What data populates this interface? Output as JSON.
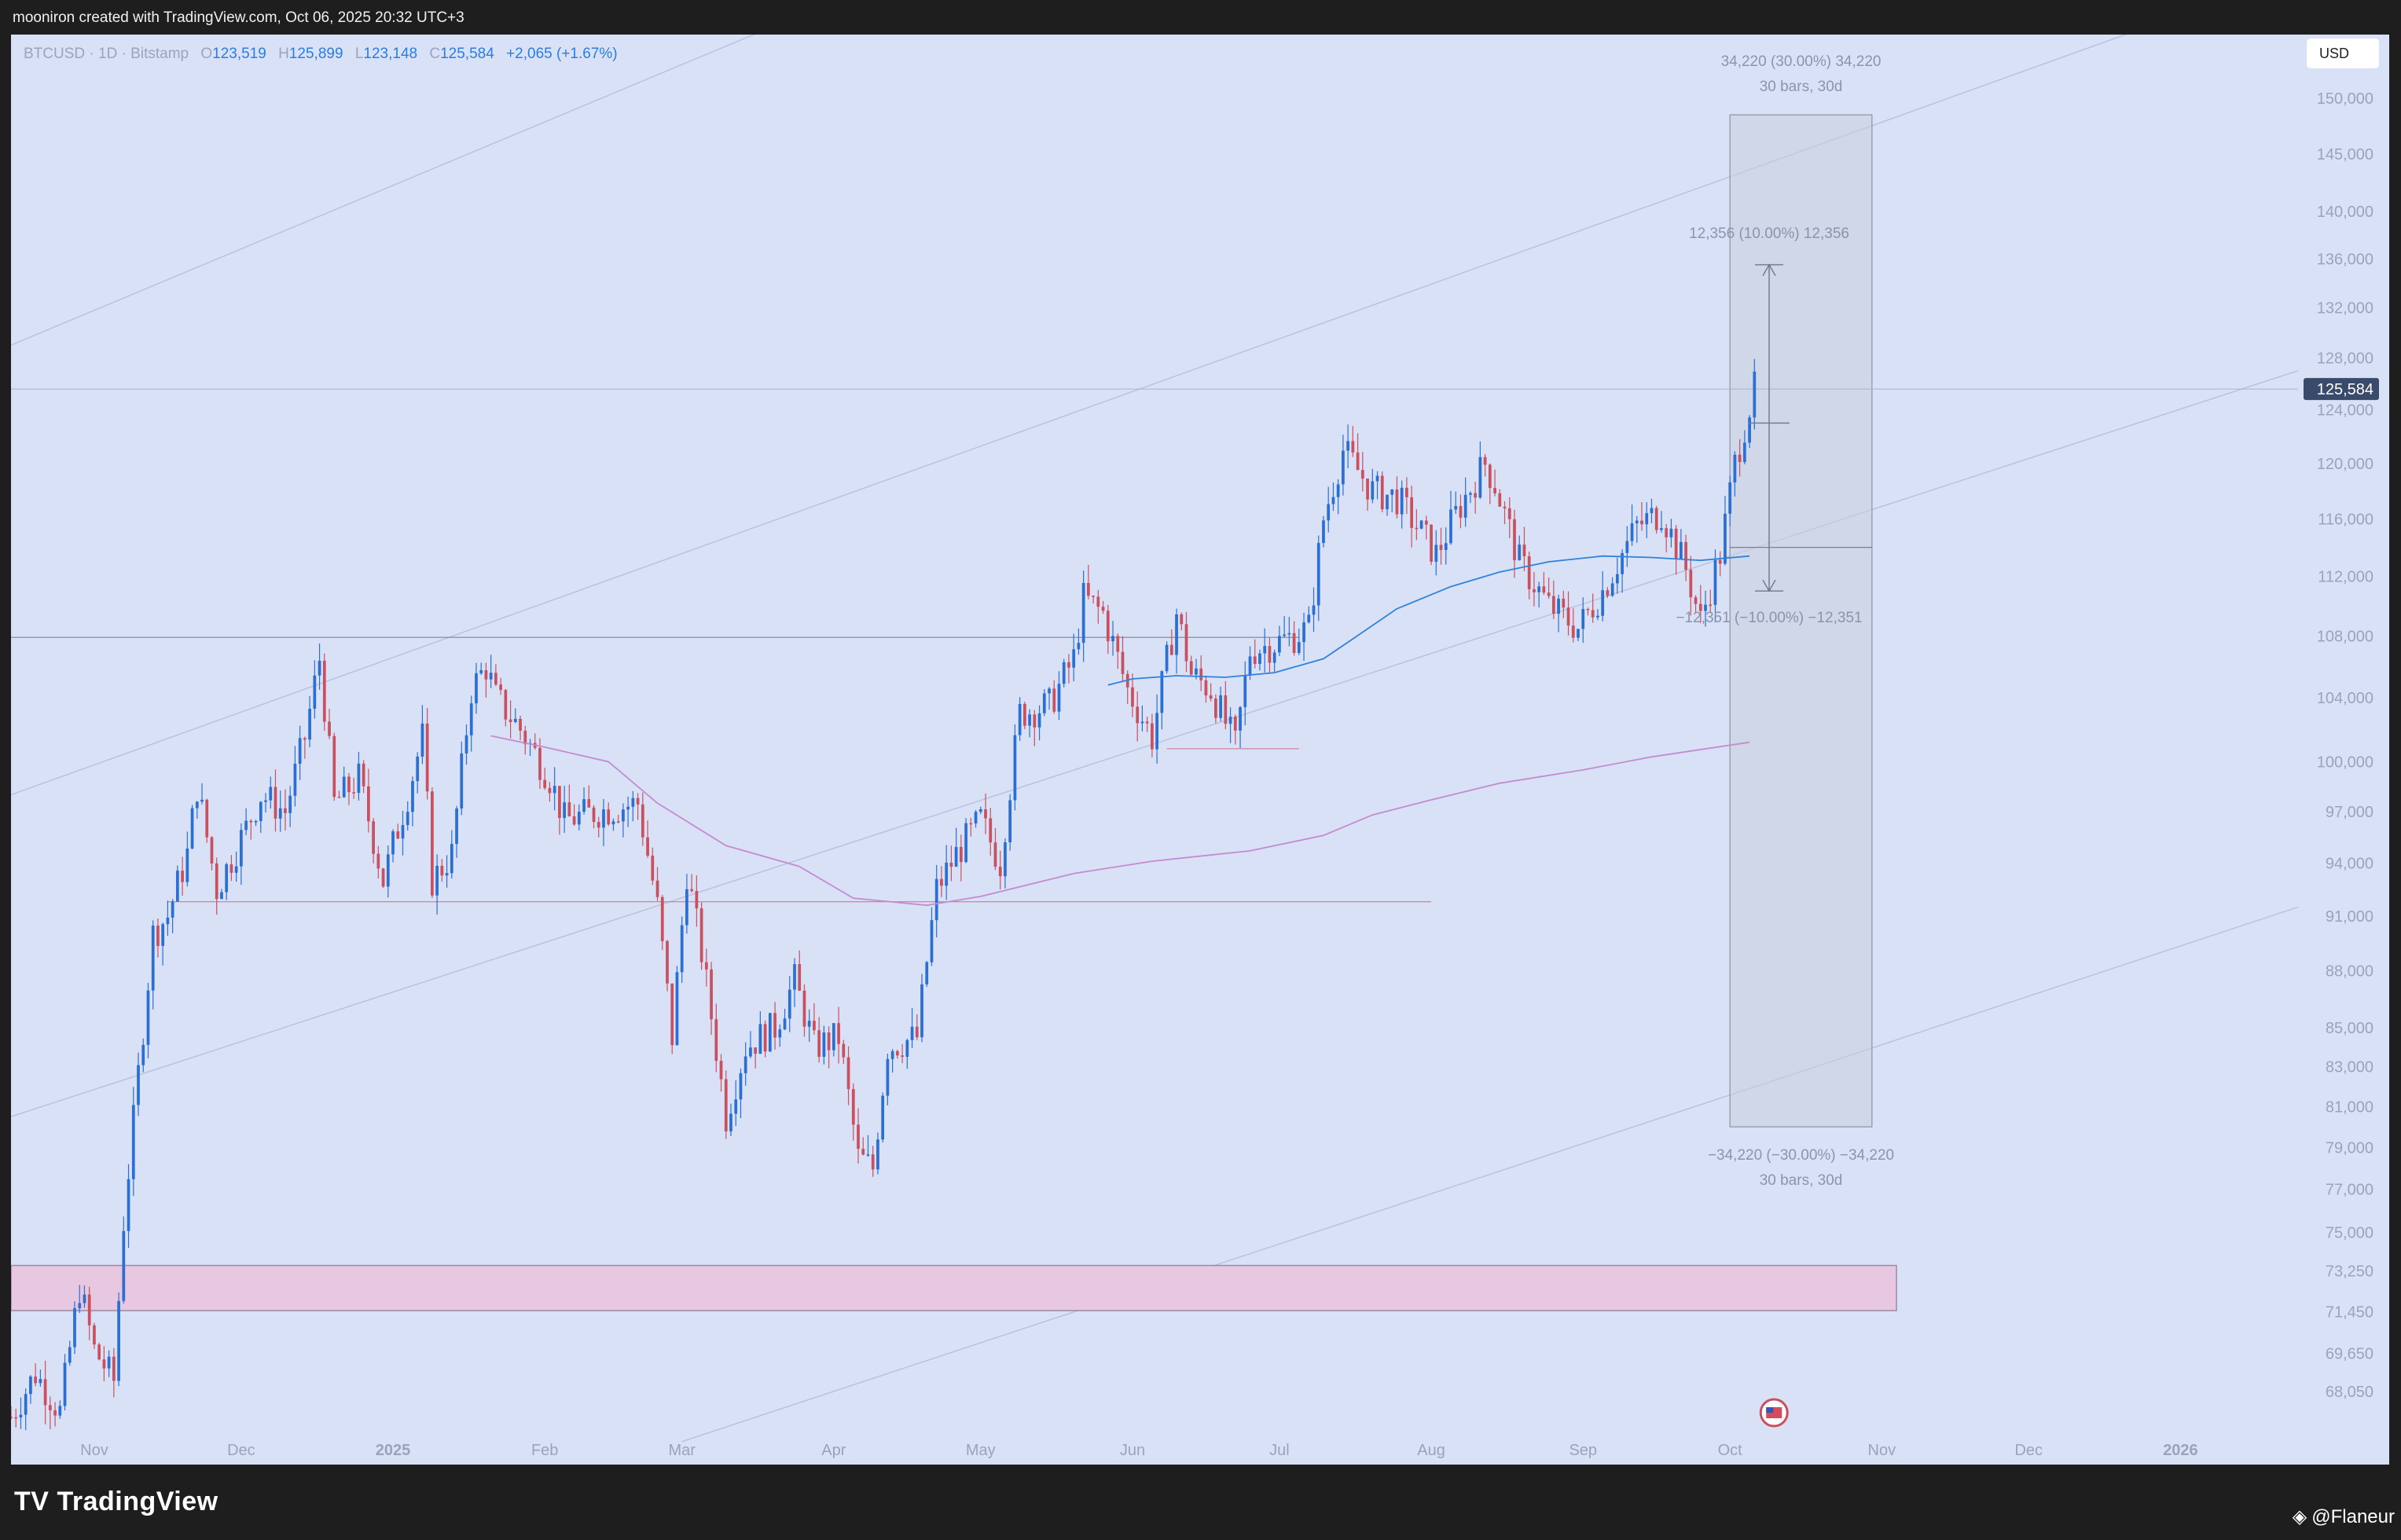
{
  "header": {
    "text": "mooniron created with TradingView.com, Oct 06, 2025 20:32 UTC+3"
  },
  "legend": {
    "symbol": "BTCUSD · 1D · Bitstamp",
    "o_label": "O",
    "o": "123,519",
    "h_label": "H",
    "h": "125,899",
    "l_label": "L",
    "l": "123,148",
    "c_label": "C",
    "c": "125,584",
    "change": "+2,065 (+1.67%)"
  },
  "currency_button": "USD",
  "footer": {
    "brand": "TradingView",
    "logo": "TV",
    "credit": "@Flaneur",
    "credit_icon": "binance-icon"
  },
  "colors": {
    "background": "#d9e1f7",
    "up": "#2a6fd1",
    "down": "#c9505e",
    "ma_short": "#2f83d8",
    "ma_long": "#c58bcf",
    "zone": "#e7c8e0",
    "measure_box": "#c9cfdf",
    "price_tag": "#3a4a6b"
  },
  "chart_data": {
    "type": "candlestick",
    "symbol": "BTCUSD",
    "interval": "1D",
    "exchange": "Bitstamp",
    "last_price": 125584,
    "last_price_label": "125,584",
    "y_scale": "log",
    "ylim": [
      66500,
      153000
    ],
    "y_ticks": [
      {
        "v": 150000,
        "label": "150,000"
      },
      {
        "v": 145000,
        "label": "145,000"
      },
      {
        "v": 140000,
        "label": "140,000"
      },
      {
        "v": 136000,
        "label": "136,000"
      },
      {
        "v": 132000,
        "label": "132,000"
      },
      {
        "v": 128000,
        "label": "128,000"
      },
      {
        "v": 124000,
        "label": "124,000"
      },
      {
        "v": 120000,
        "label": "120,000"
      },
      {
        "v": 116000,
        "label": "116,000"
      },
      {
        "v": 112000,
        "label": "112,000"
      },
      {
        "v": 108000,
        "label": "108,000"
      },
      {
        "v": 104000,
        "label": "104,000"
      },
      {
        "v": 100000,
        "label": "100,000"
      },
      {
        "v": 97000,
        "label": "97,000"
      },
      {
        "v": 94000,
        "label": "94,000"
      },
      {
        "v": 91000,
        "label": "91,000"
      },
      {
        "v": 88000,
        "label": "88,000"
      },
      {
        "v": 85000,
        "label": "85,000"
      },
      {
        "v": 83000,
        "label": "83,000"
      },
      {
        "v": 81000,
        "label": "81,000"
      },
      {
        "v": 79000,
        "label": "79,000"
      },
      {
        "v": 77000,
        "label": "77,000"
      },
      {
        "v": 75000,
        "label": "75,000"
      },
      {
        "v": 73250,
        "label": "73,250"
      },
      {
        "v": 71450,
        "label": "71,450"
      },
      {
        "v": 69650,
        "label": "69,650"
      },
      {
        "v": 68050,
        "label": "68,050"
      }
    ],
    "x_ticks": [
      {
        "date": "2024-11-01",
        "label": "Nov",
        "bold": false
      },
      {
        "date": "2024-12-01",
        "label": "Dec",
        "bold": false
      },
      {
        "date": "2025-01-01",
        "label": "2025",
        "bold": true
      },
      {
        "date": "2025-02-01",
        "label": "Feb",
        "bold": false
      },
      {
        "date": "2025-03-01",
        "label": "Mar",
        "bold": false
      },
      {
        "date": "2025-04-01",
        "label": "Apr",
        "bold": false
      },
      {
        "date": "2025-05-01",
        "label": "May",
        "bold": false
      },
      {
        "date": "2025-06-01",
        "label": "Jun",
        "bold": false
      },
      {
        "date": "2025-07-01",
        "label": "Jul",
        "bold": false
      },
      {
        "date": "2025-08-01",
        "label": "Aug",
        "bold": false
      },
      {
        "date": "2025-09-01",
        "label": "Sep",
        "bold": false
      },
      {
        "date": "2025-10-01",
        "label": "Oct",
        "bold": false
      },
      {
        "date": "2025-11-01",
        "label": "Nov",
        "bold": false
      },
      {
        "date": "2025-12-01",
        "label": "Dec",
        "bold": false
      },
      {
        "date": "2026-01-01",
        "label": "2026",
        "bold": true
      }
    ],
    "xlim": [
      "2024-10-15",
      "2026-01-25"
    ],
    "price_path": [
      [
        "2024-10-15",
        67000
      ],
      [
        "2024-10-20",
        68800
      ],
      [
        "2024-10-25",
        67200
      ],
      [
        "2024-10-29",
        72500
      ],
      [
        "2024-11-01",
        69800
      ],
      [
        "2024-11-05",
        68500
      ],
      [
        "2024-11-07",
        75500
      ],
      [
        "2024-11-11",
        85000
      ],
      [
        "2024-11-13",
        90000
      ],
      [
        "2024-11-16",
        91000
      ],
      [
        "2024-11-20",
        94500
      ],
      [
        "2024-11-22",
        98500
      ],
      [
        "2024-11-26",
        92500
      ],
      [
        "2024-12-02",
        96000
      ],
      [
        "2024-12-05",
        98000
      ],
      [
        "2024-12-10",
        97000
      ],
      [
        "2024-12-14",
        101500
      ],
      [
        "2024-12-17",
        106500
      ],
      [
        "2024-12-20",
        97500
      ],
      [
        "2024-12-25",
        99000
      ],
      [
        "2024-12-30",
        93000
      ],
      [
        "2025-01-04",
        98000
      ],
      [
        "2025-01-07",
        101500
      ],
      [
        "2025-01-09",
        93000
      ],
      [
        "2025-01-13",
        94500
      ],
      [
        "2025-01-17",
        104500
      ],
      [
        "2025-01-20",
        106000
      ],
      [
        "2025-01-22",
        104000
      ],
      [
        "2025-01-27",
        102000
      ],
      [
        "2025-02-02",
        99000
      ],
      [
        "2025-02-05",
        96500
      ],
      [
        "2025-02-12",
        97000
      ],
      [
        "2025-02-20",
        97500
      ],
      [
        "2025-02-24",
        91500
      ],
      [
        "2025-02-27",
        84500
      ],
      [
        "2025-03-02",
        93500
      ],
      [
        "2025-03-05",
        89000
      ],
      [
        "2025-03-10",
        80500
      ],
      [
        "2025-03-14",
        84000
      ],
      [
        "2025-03-20",
        85000
      ],
      [
        "2025-03-24",
        87500
      ],
      [
        "2025-03-28",
        84000
      ],
      [
        "2025-04-02",
        84500
      ],
      [
        "2025-04-06",
        78500
      ],
      [
        "2025-04-09",
        78000
      ],
      [
        "2025-04-12",
        84000
      ],
      [
        "2025-04-18",
        84500
      ],
      [
        "2025-04-22",
        92500
      ],
      [
        "2025-04-26",
        94500
      ],
      [
        "2025-05-01",
        96500
      ],
      [
        "2025-05-05",
        94000
      ],
      [
        "2025-05-09",
        103000
      ],
      [
        "2025-05-15",
        103500
      ],
      [
        "2025-05-20",
        106500
      ],
      [
        "2025-05-22",
        110500
      ],
      [
        "2025-05-26",
        109500
      ],
      [
        "2025-05-31",
        104500
      ],
      [
        "2025-06-05",
        101500
      ],
      [
        "2025-06-10",
        109500
      ],
      [
        "2025-06-13",
        105500
      ],
      [
        "2025-06-17",
        104500
      ],
      [
        "2025-06-22",
        101000
      ],
      [
        "2025-06-25",
        107000
      ],
      [
        "2025-06-30",
        107500
      ],
      [
        "2025-07-04",
        108000
      ],
      [
        "2025-07-07",
        108500
      ],
      [
        "2025-07-10",
        116000
      ],
      [
        "2025-07-14",
        121000
      ],
      [
        "2025-07-20",
        118000
      ],
      [
        "2025-07-25",
        117500
      ],
      [
        "2025-08-02",
        113500
      ],
      [
        "2025-08-07",
        117000
      ],
      [
        "2025-08-12",
        120000
      ],
      [
        "2025-08-14",
        118500
      ],
      [
        "2025-08-19",
        113000
      ],
      [
        "2025-08-25",
        110000
      ],
      [
        "2025-08-31",
        108500
      ],
      [
        "2025-09-05",
        111000
      ],
      [
        "2025-09-12",
        115500
      ],
      [
        "2025-09-17",
        116500
      ],
      [
        "2025-09-22",
        112500
      ],
      [
        "2025-09-25",
        109000
      ],
      [
        "2025-09-29",
        113500
      ],
      [
        "2025-10-02",
        120000
      ],
      [
        "2025-10-06",
        125584
      ]
    ],
    "series": [
      {
        "name": "",
        "kind": "line",
        "points": [
          [
            "2025-05-27",
            104800
          ],
          [
            "2025-06-01",
            105200
          ],
          [
            "2025-06-10",
            105400
          ],
          [
            "2025-06-20",
            105300
          ],
          [
            "2025-06-30",
            105600
          ],
          [
            "2025-07-10",
            106500
          ],
          [
            "2025-07-16",
            107800
          ],
          [
            "2025-07-25",
            109800
          ],
          [
            "2025-08-05",
            111300
          ],
          [
            "2025-08-15",
            112300
          ],
          [
            "2025-08-25",
            113000
          ],
          [
            "2025-09-05",
            113400
          ],
          [
            "2025-09-15",
            113300
          ],
          [
            "2025-09-25",
            113100
          ],
          [
            "2025-10-05",
            113400
          ]
        ]
      },
      {
        "name": "",
        "kind": "line",
        "points": [
          [
            "2025-01-21",
            101600
          ],
          [
            "2025-02-01",
            100900
          ],
          [
            "2025-02-14",
            100000
          ],
          [
            "2025-02-24",
            97500
          ],
          [
            "2025-03-10",
            95000
          ],
          [
            "2025-03-25",
            93800
          ],
          [
            "2025-04-05",
            92000
          ],
          [
            "2025-04-20",
            91600
          ],
          [
            "2025-05-01",
            92100
          ],
          [
            "2025-05-20",
            93400
          ],
          [
            "2025-06-05",
            94100
          ],
          [
            "2025-06-25",
            94700
          ],
          [
            "2025-07-10",
            95600
          ],
          [
            "2025-07-20",
            96800
          ],
          [
            "2025-08-01",
            97700
          ],
          [
            "2025-08-15",
            98700
          ],
          [
            "2025-09-01",
            99500
          ],
          [
            "2025-09-15",
            100300
          ],
          [
            "2025-10-05",
            101200
          ]
        ]
      }
    ],
    "horizontal_lines": [
      {
        "price": 107900,
        "from": "2024-10-15",
        "to": "2025-07-05"
      },
      {
        "price": 91800,
        "from": "2024-11-16",
        "to": "2025-08-01"
      },
      {
        "price": 100800,
        "from": "2025-06-08",
        "to": "2025-07-05"
      },
      {
        "price": 125584,
        "from": "2024-10-15",
        "to": "2026-01-25"
      }
    ],
    "support_zone": {
      "from": "2024-10-15",
      "to": "2025-11-04",
      "low": 71500,
      "high": 73500
    },
    "trend_lines": [
      {
        "from": [
          "2024-10-15",
          98000
        ],
        "to": [
          "2026-01-25",
          162000
        ]
      },
      {
        "from": [
          "2024-10-15",
          80500
        ],
        "to": [
          "2026-01-25",
          127000
        ]
      },
      {
        "from": [
          "2024-10-15",
          129000
        ],
        "to": [
          "2025-03-26",
          158000
        ]
      },
      {
        "from": [
          "2025-03-01",
          66000
        ],
        "to": [
          "2026-01-25",
          91500
        ]
      }
    ],
    "measure_box": {
      "from": "2025-10-01",
      "to": "2025-10-30",
      "top": 148500,
      "bottom": 80000,
      "mid": 114000,
      "top_label": "34,220 (30.00%) 34,220",
      "top_sub": "30 bars, 30d",
      "bottom_label": "−34,220 (−30.00%) −34,220",
      "bottom_sub": "30 bars, 30d"
    },
    "measure_arrow": {
      "date": "2025-10-09",
      "top": 135500,
      "bottom": 111000,
      "mid": 123000,
      "top_label": "12,356 (10.00%) 12,356",
      "bottom_label": "−12,351 (−10.00%) −12,351"
    }
  }
}
